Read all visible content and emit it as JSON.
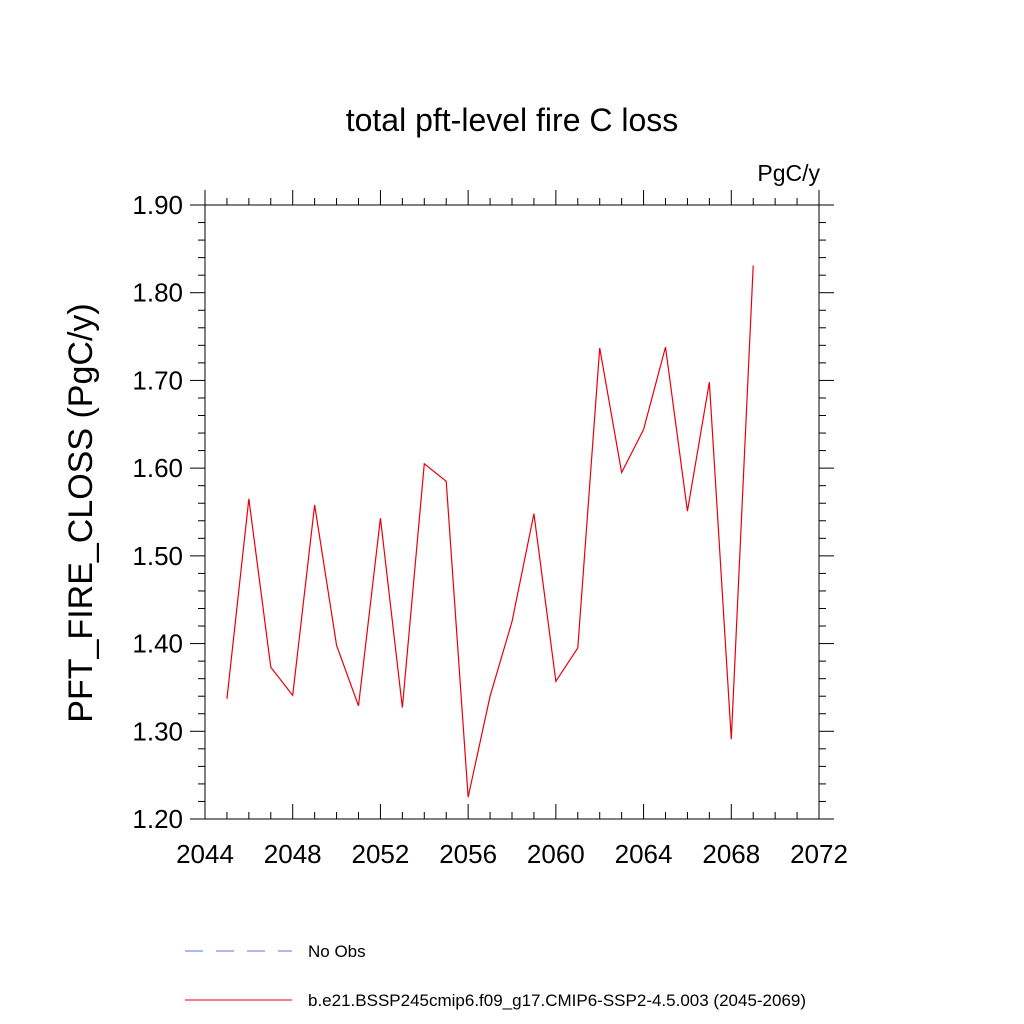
{
  "chart_data": {
    "type": "line",
    "title": "total pft-level fire C loss",
    "units_label": "PgC/y",
    "xlabel": "",
    "ylabel": "PFT_FIRE_CLOSS  (PgC/y)",
    "xlim": [
      2044,
      2072
    ],
    "ylim": [
      1.2,
      1.9
    ],
    "x_ticks": [
      2044,
      2048,
      2052,
      2056,
      2060,
      2064,
      2068,
      2072
    ],
    "x_tick_labels": [
      "2044",
      "2048",
      "2052",
      "2056",
      "2060",
      "2064",
      "2068",
      "2072"
    ],
    "y_ticks": [
      1.2,
      1.3,
      1.4,
      1.5,
      1.6,
      1.7,
      1.8,
      1.9
    ],
    "y_tick_labels": [
      "1.20",
      "1.30",
      "1.40",
      "1.50",
      "1.60",
      "1.70",
      "1.80",
      "1.90"
    ],
    "grid": false,
    "legend_position": "bottom",
    "series": [
      {
        "name": "b.e21.BSSP245cmip6.f09_g17.CMIP6-SSP2-4.5.003 (2045-2069)",
        "color": "#e8000b",
        "style": "solid",
        "x": [
          2045,
          2046,
          2047,
          2048,
          2049,
          2050,
          2051,
          2052,
          2053,
          2054,
          2055,
          2056,
          2057,
          2058,
          2059,
          2060,
          2061,
          2062,
          2063,
          2064,
          2065,
          2066,
          2067,
          2068,
          2069
        ],
        "values": [
          1.337,
          1.565,
          1.373,
          1.341,
          1.558,
          1.398,
          1.329,
          1.543,
          1.327,
          1.605,
          1.585,
          1.225,
          1.34,
          1.425,
          1.548,
          1.357,
          1.395,
          1.737,
          1.595,
          1.644,
          1.738,
          1.551,
          1.698,
          1.291,
          1.831
        ]
      }
    ],
    "legend": [
      {
        "label": "No Obs",
        "color": "#5c6cf5",
        "style": "dashed"
      },
      {
        "label": "b.e21.BSSP245cmip6.f09_g17.CMIP6-SSP2-4.5.003 (2045-2069)",
        "color": "#e8000b",
        "style": "solid"
      }
    ]
  }
}
